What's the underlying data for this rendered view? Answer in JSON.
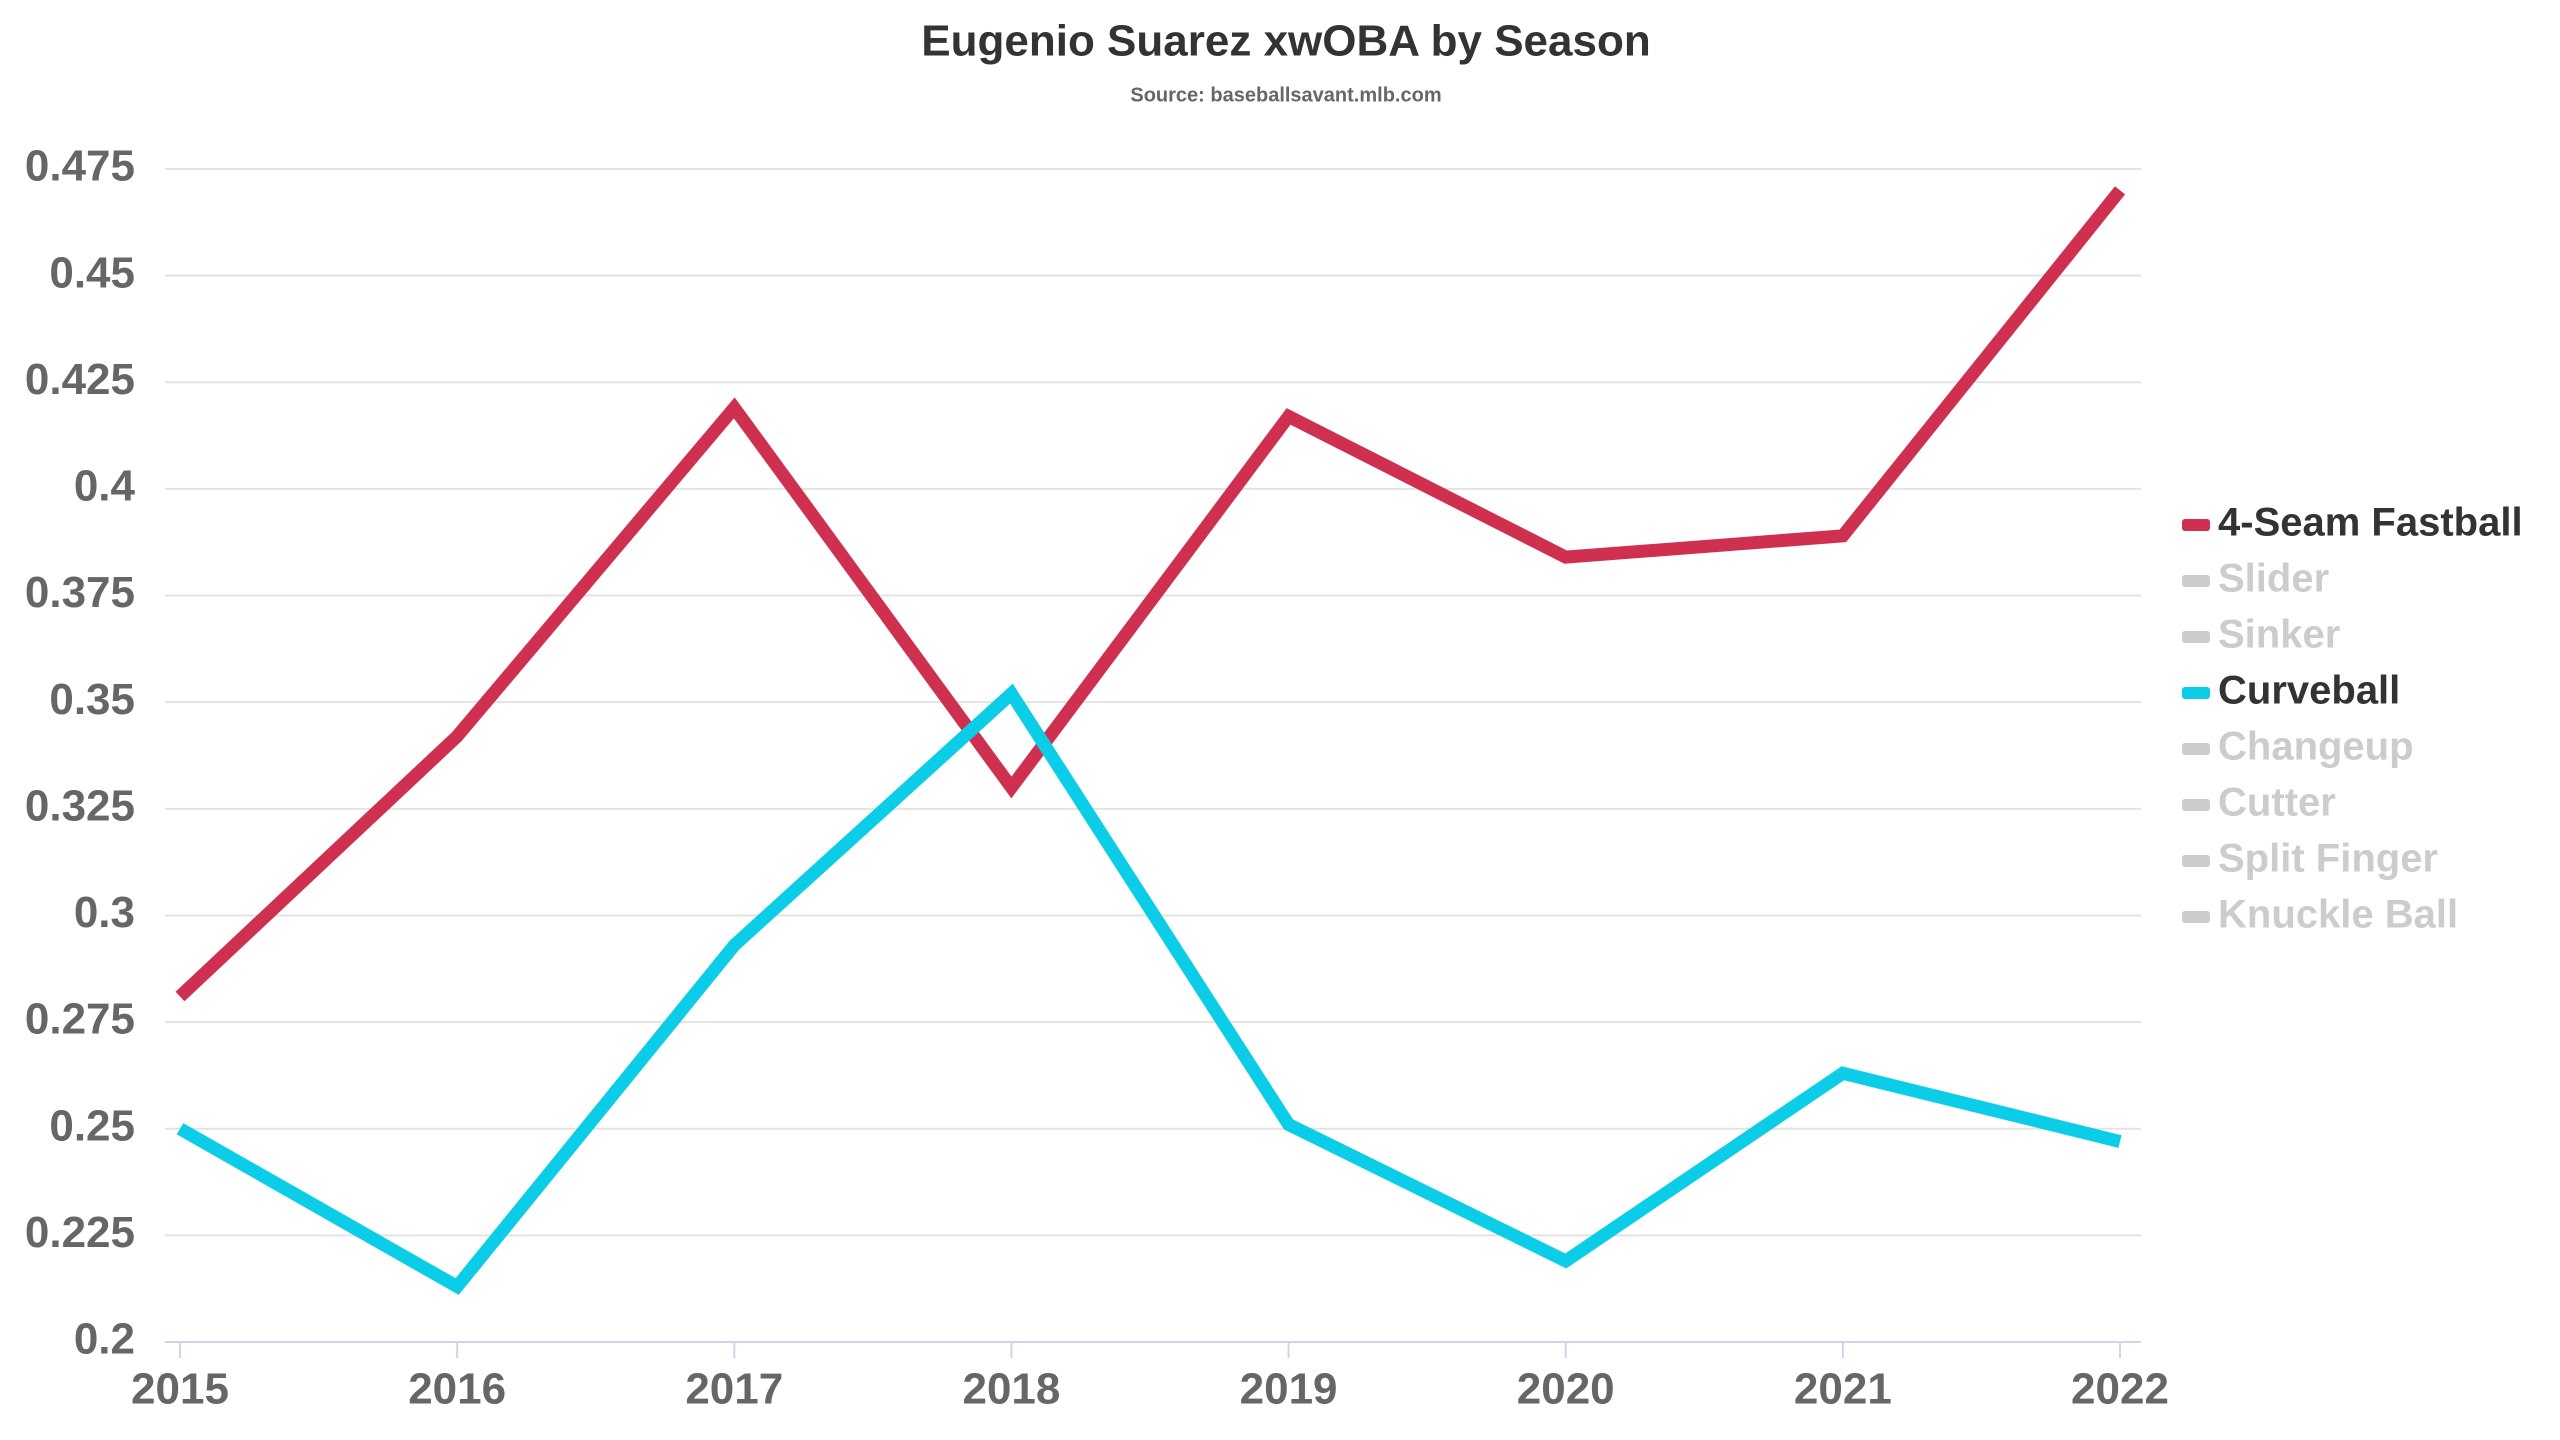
{
  "chart_data": {
    "type": "line",
    "title": "Eugenio Suarez xwOBA by Season",
    "subtitle": "Source: baseballsavant.mlb.com",
    "categories": [
      "2015",
      "2016",
      "2017",
      "2018",
      "2019",
      "2020",
      "2021",
      "2022"
    ],
    "ylim": [
      0.2,
      0.475
    ],
    "yticks": [
      0.2,
      0.225,
      0.25,
      0.275,
      0.3,
      0.325,
      0.35,
      0.375,
      0.4,
      0.425,
      0.45,
      0.475
    ],
    "grid": true,
    "legend": "right",
    "series": [
      {
        "name": "4-Seam Fastball",
        "color": "#d0304f",
        "visible": true,
        "values": [
          0.281,
          0.342,
          0.419,
          0.33,
          0.417,
          0.384,
          0.389,
          0.47
        ]
      },
      {
        "name": "Slider",
        "color": "#cccccc",
        "visible": false
      },
      {
        "name": "Sinker",
        "color": "#cccccc",
        "visible": false
      },
      {
        "name": "Curveball",
        "color": "#0ccde8",
        "visible": true,
        "values": [
          0.25,
          0.213,
          0.293,
          0.352,
          0.251,
          0.219,
          0.263,
          0.247
        ]
      },
      {
        "name": "Changeup",
        "color": "#cccccc",
        "visible": false
      },
      {
        "name": "Cutter",
        "color": "#cccccc",
        "visible": false
      },
      {
        "name": "Split Finger",
        "color": "#cccccc",
        "visible": false
      },
      {
        "name": "Knuckle Ball",
        "color": "#cccccc",
        "visible": false
      }
    ]
  }
}
